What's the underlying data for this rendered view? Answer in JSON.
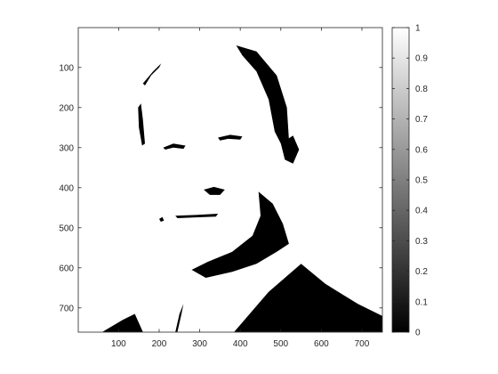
{
  "chart_data": {
    "type": "heatmap",
    "title": "",
    "xlabel": "",
    "ylabel": "",
    "description_of_data": "binary thresholded grayscale image (values 0 or 1) displayed with gray colormap",
    "image_size": {
      "width": 750,
      "height": 760
    },
    "xlim": [
      0.5,
      750.5
    ],
    "ylim": [
      0.5,
      760.5
    ],
    "y_direction": "reverse",
    "x_ticks": [
      100,
      200,
      300,
      400,
      500,
      600,
      700
    ],
    "x_tick_labels": [
      "100",
      "200",
      "300",
      "400",
      "500",
      "600",
      "700"
    ],
    "y_ticks": [
      100,
      200,
      300,
      400,
      500,
      600,
      700
    ],
    "y_tick_labels": [
      "100",
      "200",
      "300",
      "400",
      "500",
      "600",
      "700"
    ],
    "colormap": "gray",
    "clim": [
      0,
      1
    ],
    "colorbar": {
      "ticks": [
        0,
        0.1,
        0.2,
        0.3,
        0.4,
        0.5,
        0.6,
        0.7,
        0.8,
        0.9,
        1
      ],
      "tick_labels": [
        "0",
        "0.1",
        "0.2",
        "0.3",
        "0.4",
        "0.5",
        "0.6",
        "0.7",
        "0.8",
        "0.9",
        "1"
      ]
    },
    "dark_regions": [
      {
        "name": "head-right-edge",
        "points": [
          [
            390,
            45
          ],
          [
            440,
            60
          ],
          [
            490,
            120
          ],
          [
            515,
            200
          ],
          [
            520,
            280
          ],
          [
            505,
            300
          ],
          [
            485,
            260
          ],
          [
            470,
            180
          ],
          [
            440,
            110
          ],
          [
            405,
            70
          ]
        ]
      },
      {
        "name": "hairline-left-top",
        "points": [
          [
            160,
            140
          ],
          [
            185,
            110
          ],
          [
            205,
            90
          ],
          [
            200,
            100
          ],
          [
            180,
            120
          ],
          [
            165,
            145
          ]
        ]
      },
      {
        "name": "hairline-left-side",
        "points": [
          [
            148,
            200
          ],
          [
            155,
            190
          ],
          [
            160,
            230
          ],
          [
            165,
            290
          ],
          [
            158,
            295
          ],
          [
            150,
            250
          ]
        ]
      },
      {
        "name": "ear-shadow",
        "points": [
          [
            500,
            290
          ],
          [
            530,
            270
          ],
          [
            545,
            305
          ],
          [
            530,
            340
          ],
          [
            510,
            330
          ]
        ]
      },
      {
        "name": "eyebrow-left",
        "points": [
          [
            210,
            300
          ],
          [
            235,
            290
          ],
          [
            265,
            295
          ],
          [
            260,
            303
          ],
          [
            235,
            300
          ],
          [
            215,
            305
          ]
        ]
      },
      {
        "name": "eyebrow-right",
        "points": [
          [
            345,
            275
          ],
          [
            375,
            268
          ],
          [
            405,
            272
          ],
          [
            400,
            280
          ],
          [
            370,
            278
          ],
          [
            350,
            282
          ]
        ]
      },
      {
        "name": "nostrils",
        "points": [
          [
            310,
            405
          ],
          [
            335,
            398
          ],
          [
            362,
            405
          ],
          [
            350,
            418
          ],
          [
            325,
            418
          ]
        ]
      },
      {
        "name": "mouth-line",
        "points": [
          [
            240,
            470
          ],
          [
            290,
            468
          ],
          [
            345,
            465
          ],
          [
            340,
            472
          ],
          [
            290,
            474
          ],
          [
            245,
            476
          ]
        ]
      },
      {
        "name": "lip-mark",
        "points": [
          [
            200,
            478
          ],
          [
            208,
            473
          ],
          [
            212,
            482
          ],
          [
            204,
            485
          ]
        ]
      },
      {
        "name": "beard-shadow",
        "points": [
          [
            445,
            410
          ],
          [
            480,
            440
          ],
          [
            505,
            490
          ],
          [
            520,
            540
          ],
          [
            490,
            560
          ],
          [
            440,
            590
          ],
          [
            380,
            610
          ],
          [
            315,
            625
          ],
          [
            280,
            605
          ],
          [
            320,
            585
          ],
          [
            380,
            560
          ],
          [
            430,
            520
          ],
          [
            450,
            470
          ]
        ]
      },
      {
        "name": "jacket-right",
        "points": [
          [
            385,
            760
          ],
          [
            470,
            660
          ],
          [
            550,
            590
          ],
          [
            610,
            640
          ],
          [
            690,
            690
          ],
          [
            750,
            720
          ],
          [
            750,
            760
          ]
        ]
      },
      {
        "name": "jacket-left",
        "points": [
          [
            60,
            760
          ],
          [
            110,
            730
          ],
          [
            140,
            715
          ],
          [
            160,
            760
          ]
        ]
      },
      {
        "name": "collar-line",
        "points": [
          [
            240,
            760
          ],
          [
            250,
            715
          ],
          [
            260,
            690
          ],
          [
            255,
            715
          ],
          [
            245,
            760
          ]
        ]
      }
    ]
  }
}
